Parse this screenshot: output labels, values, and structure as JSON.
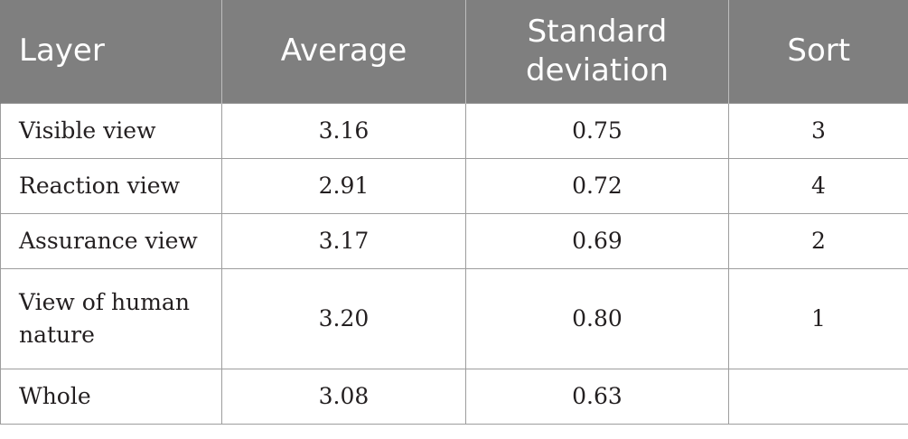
{
  "table": {
    "headers": [
      "Layer",
      "Average",
      "Standard deviation",
      "Sort"
    ],
    "rows": [
      {
        "layer": "Visible view",
        "average": "3.16",
        "std": "0.75",
        "sort": "3"
      },
      {
        "layer": "Reaction view",
        "average": "2.91",
        "std": "0.72",
        "sort": "4"
      },
      {
        "layer": "Assurance view",
        "average": "3.17",
        "std": "0.69",
        "sort": "2"
      },
      {
        "layer": "View of human nature",
        "average": "3.20",
        "std": "0.80",
        "sort": "1"
      },
      {
        "layer": "Whole",
        "average": "3.08",
        "std": "0.63",
        "sort": ""
      }
    ]
  },
  "colors": {
    "header_bg": "#7f7f7f",
    "header_text": "#ffffff",
    "border": "#9d9d9d",
    "body_text": "#231f20"
  }
}
